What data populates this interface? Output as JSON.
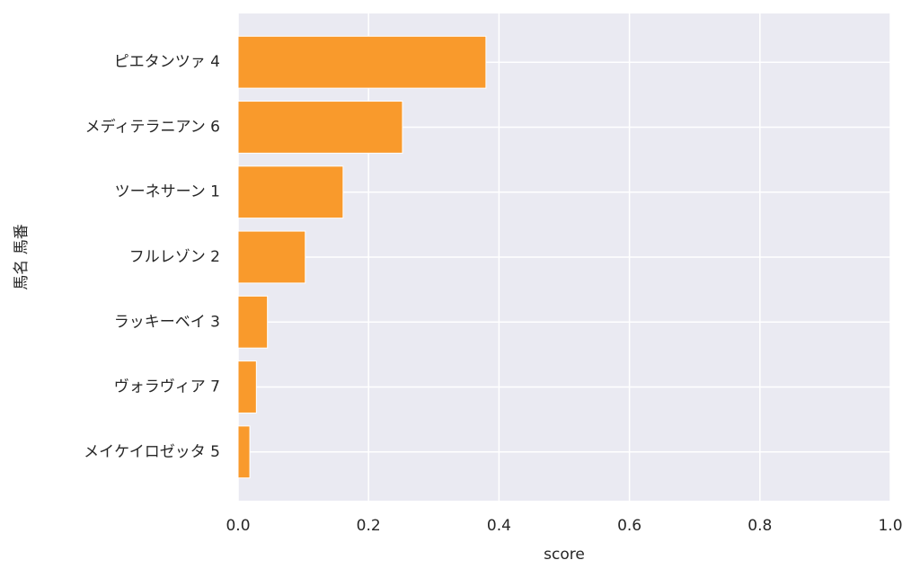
{
  "chart_data": {
    "type": "barh",
    "xlabel": "score",
    "ylabel": "馬名 馬番",
    "categories": [
      "ピエタンツァ 4",
      "メディテラニアン 6",
      "ツーネサーン 1",
      "フルレゾン 2",
      "ラッキーベイ 3",
      "ヴォラヴィア 7",
      "メイケイロゼッタ 5"
    ],
    "values": [
      0.38,
      0.252,
      0.161,
      0.103,
      0.045,
      0.028,
      0.018
    ],
    "color": "#f99a2c",
    "xlim": [
      0,
      1
    ],
    "xticks": [
      {
        "value": 0,
        "label": "0.0"
      },
      {
        "value": 0.2,
        "label": "0.2"
      },
      {
        "value": 0.4,
        "label": "0.4"
      },
      {
        "value": 0.6,
        "label": "0.6"
      },
      {
        "value": 0.8,
        "label": "0.8"
      },
      {
        "value": 1,
        "label": "1.0"
      }
    ],
    "grid": true
  }
}
